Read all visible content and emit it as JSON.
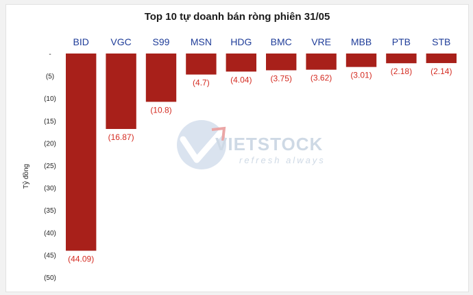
{
  "chart_data": {
    "type": "bar",
    "title": "Top 10 tự doanh bán ròng phiên 31/05",
    "ylabel": "Tỷ đồng",
    "xlabel": "",
    "categories": [
      "BID",
      "VGC",
      "S99",
      "MSN",
      "HDG",
      "BMC",
      "VRE",
      "MBB",
      "PTB",
      "STB"
    ],
    "values": [
      -44.09,
      -16.87,
      -10.8,
      -4.7,
      -4.04,
      -3.75,
      -3.62,
      -3.01,
      -2.18,
      -2.14
    ],
    "data_labels": [
      "(44.09)",
      "(16.87)",
      "(10.8)",
      "(4.7)",
      "(4.04)",
      "(3.75)",
      "(3.62)",
      "(3.01)",
      "(2.18)",
      "(2.14)"
    ],
    "ylim": [
      -50,
      0
    ],
    "yticks": [
      0,
      -5,
      -10,
      -15,
      -20,
      -25,
      -30,
      -35,
      -40,
      -45,
      -50
    ],
    "ytick_labels": [
      "-",
      "(5)",
      "(10)",
      "(15)",
      "(20)",
      "(25)",
      "(30)",
      "(35)",
      "(40)",
      "(45)",
      "(50)"
    ],
    "grid": false,
    "legend": "none",
    "colors": {
      "bar": "#a8201a",
      "label": "#d42a20",
      "category": "#1f3d99"
    }
  },
  "watermark": {
    "brand": "VIETSTOCK",
    "tagline": "refresh always"
  }
}
